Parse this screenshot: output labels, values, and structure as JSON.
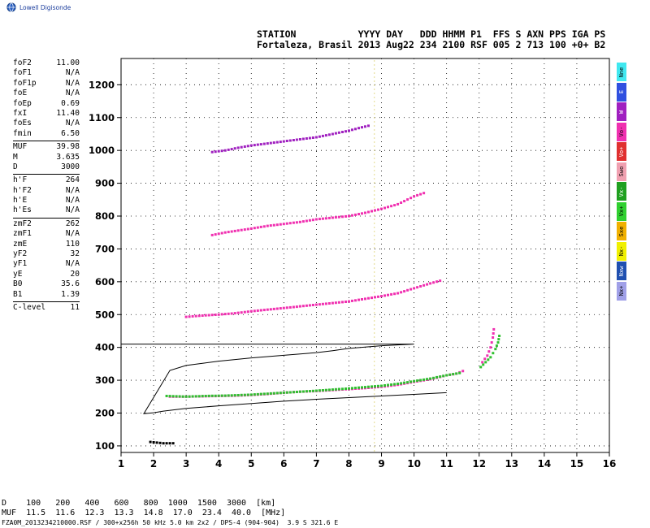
{
  "brand": {
    "name": "Lowell Digisonde",
    "icon": "globe-icon"
  },
  "header": {
    "line1": "STATION           YYYY DAY   DDD HHMM P1  FFS S AXN PPS IGA PS",
    "line2": "Fortaleza, Brasil 2013 Aug22 234 2100 RSF 005 2 713 100 +0+ B2"
  },
  "parameters": [
    {
      "name": "foF2",
      "value": "11.00"
    },
    {
      "name": "foF1",
      "value": "N/A"
    },
    {
      "name": "foF1p",
      "value": "N/A"
    },
    {
      "name": "foE",
      "value": "N/A"
    },
    {
      "name": "foEp",
      "value": "0.69"
    },
    {
      "name": "fxI",
      "value": "11.40"
    },
    {
      "name": "foEs",
      "value": "N/A"
    },
    {
      "name": "fmin",
      "value": "6.50"
    },
    {
      "sep": true
    },
    {
      "name": "MUF",
      "value": "39.98"
    },
    {
      "name": "M",
      "value": "3.635"
    },
    {
      "name": "D",
      "value": "3000"
    },
    {
      "sep": true
    },
    {
      "name": "h'F",
      "value": "264"
    },
    {
      "name": "h'F2",
      "value": "N/A"
    },
    {
      "name": "h'E",
      "value": "N/A"
    },
    {
      "name": "h'Es",
      "value": "N/A"
    },
    {
      "sep": true
    },
    {
      "name": "zmF2",
      "value": "262"
    },
    {
      "name": "zmF1",
      "value": "N/A"
    },
    {
      "name": "zmE",
      "value": "110"
    },
    {
      "name": "yF2",
      "value": "32"
    },
    {
      "name": "yF1",
      "value": "N/A"
    },
    {
      "name": "yE",
      "value": "20"
    },
    {
      "name": "B0",
      "value": "35.6"
    },
    {
      "name": "B1",
      "value": "1.39"
    },
    {
      "sep": true
    },
    {
      "name": "C-level",
      "value": "11"
    }
  ],
  "mode_key": [
    {
      "label": "Nne",
      "color": "#40e8f0"
    },
    {
      "label": "E",
      "color": "#3050e0"
    },
    {
      "label": "W",
      "color": "#a020c0"
    },
    {
      "label": "Vo-",
      "color": "#f030b0"
    },
    {
      "label": "Vo+",
      "color": "#e03030"
    },
    {
      "label": "Swo",
      "color": "#f0a0b0"
    },
    {
      "label": "Vx-",
      "color": "#20a020"
    },
    {
      "label": "Vx+",
      "color": "#30d030"
    },
    {
      "label": "Sxe",
      "color": "#f0b000"
    },
    {
      "label": "Nx-",
      "color": "#f0f000"
    },
    {
      "label": "Nxw",
      "color": "#2050b0"
    },
    {
      "label": "Nx+",
      "color": "#a0a0e8"
    }
  ],
  "footer": {
    "d_row": "D    100   200   400   600   800  1000  1500  3000  [km]",
    "muf_row": "MUF  11.5  11.6  12.3  13.3  14.8  17.0  23.4  40.0  [MHz]",
    "file_row": "FZA0M_2013234210000.RSF / 300+x256h 50 kHz 5.0 km 2x2 / DPS-4 (904-904)  3.9 S 321.6 E"
  },
  "chart_data": {
    "type": "scatter",
    "xlim": [
      1,
      16
    ],
    "ylim": [
      80,
      1280
    ],
    "x_ticks": [
      1,
      2,
      3,
      4,
      5,
      6,
      7,
      8,
      9,
      10,
      11,
      12,
      13,
      14,
      15,
      16
    ],
    "y_ticks": [
      100,
      200,
      300,
      400,
      500,
      600,
      700,
      800,
      900,
      1000,
      1100,
      1200
    ],
    "grid": "dotted",
    "traces": [
      {
        "name": "F-trace O",
        "color": "#f030b0",
        "points": [
          [
            2.5,
            250
          ],
          [
            3,
            250
          ],
          [
            3.5,
            251
          ],
          [
            4,
            252
          ],
          [
            4.5,
            253
          ],
          [
            5,
            255
          ],
          [
            5.5,
            258
          ],
          [
            6,
            262
          ],
          [
            6.5,
            265
          ],
          [
            7,
            267
          ],
          [
            7.5,
            270
          ],
          [
            8,
            273
          ],
          [
            8.5,
            276
          ],
          [
            9,
            280
          ],
          [
            9.5,
            286
          ],
          [
            10,
            295
          ],
          [
            10.5,
            303
          ],
          [
            10.8,
            310
          ],
          [
            11,
            315
          ],
          [
            11.3,
            320
          ],
          [
            11.5,
            328
          ]
        ]
      },
      {
        "name": "F-trace X",
        "color": "#30c030",
        "points": [
          [
            2.4,
            252
          ],
          [
            3,
            250
          ],
          [
            3.6,
            252
          ],
          [
            4.2,
            253
          ],
          [
            5,
            256
          ],
          [
            6,
            262
          ],
          [
            7,
            268
          ],
          [
            8,
            275
          ],
          [
            9,
            283
          ],
          [
            9.5,
            289
          ],
          [
            10,
            297
          ],
          [
            10.5,
            305
          ],
          [
            11,
            315
          ],
          [
            11.4,
            322
          ]
        ]
      },
      {
        "name": "F2 cusp",
        "color": "#30c030",
        "points": [
          [
            12.05,
            340
          ],
          [
            12.2,
            355
          ],
          [
            12.35,
            370
          ],
          [
            12.5,
            395
          ],
          [
            12.58,
            415
          ],
          [
            12.62,
            435
          ]
        ]
      },
      {
        "name": "F2 cusp O",
        "color": "#f030b0",
        "points": [
          [
            12.1,
            355
          ],
          [
            12.25,
            375
          ],
          [
            12.35,
            400
          ],
          [
            12.42,
            430
          ],
          [
            12.45,
            455
          ]
        ]
      },
      {
        "name": "2F echo",
        "color": "#f030b0",
        "points": [
          [
            3,
            493
          ],
          [
            3.5,
            497
          ],
          [
            4,
            500
          ],
          [
            4.5,
            504
          ],
          [
            5,
            510
          ],
          [
            5.5,
            515
          ],
          [
            6,
            520
          ],
          [
            6.5,
            525
          ],
          [
            7,
            530
          ],
          [
            7.5,
            535
          ],
          [
            8,
            540
          ],
          [
            8.5,
            548
          ],
          [
            9,
            556
          ],
          [
            9.5,
            565
          ],
          [
            10,
            580
          ],
          [
            10.5,
            595
          ],
          [
            10.8,
            603
          ]
        ]
      },
      {
        "name": "3F echo",
        "color": "#f030b0",
        "points": [
          [
            3.8,
            742
          ],
          [
            4.2,
            750
          ],
          [
            4.6,
            756
          ],
          [
            5,
            762
          ],
          [
            5.5,
            770
          ],
          [
            6,
            776
          ],
          [
            6.5,
            782
          ],
          [
            7,
            790
          ],
          [
            7.5,
            795
          ],
          [
            8,
            800
          ],
          [
            8.5,
            810
          ],
          [
            9,
            822
          ],
          [
            9.5,
            836
          ],
          [
            10,
            860
          ],
          [
            10.3,
            870
          ]
        ]
      },
      {
        "name": "4F echo",
        "color": "#a020c0",
        "points": [
          [
            3.8,
            995
          ],
          [
            4.2,
            1000
          ],
          [
            4.6,
            1008
          ],
          [
            5,
            1015
          ],
          [
            5.4,
            1020
          ],
          [
            5.8,
            1025
          ],
          [
            6.2,
            1030
          ],
          [
            6.6,
            1035
          ],
          [
            7,
            1040
          ],
          [
            8,
            1060
          ],
          [
            8.3,
            1068
          ],
          [
            8.6,
            1075
          ]
        ]
      },
      {
        "name": "E echo",
        "color": "#000000",
        "points": [
          [
            1.9,
            112
          ],
          [
            2.1,
            110
          ],
          [
            2.3,
            108
          ],
          [
            2.6,
            108
          ]
        ]
      }
    ],
    "profile": [
      [
        11,
        262
      ],
      [
        10,
        257
      ],
      [
        9,
        252
      ],
      [
        8,
        247
      ],
      [
        7,
        242
      ],
      [
        6,
        236
      ],
      [
        5,
        229
      ],
      [
        4,
        222
      ],
      [
        3,
        214
      ],
      [
        2.3,
        206
      ],
      [
        2.0,
        201
      ],
      [
        1.7,
        198
      ],
      [
        2.5,
        330
      ],
      [
        3,
        345
      ],
      [
        4,
        358
      ],
      [
        5,
        368
      ],
      [
        6,
        376
      ],
      [
        7,
        384
      ],
      [
        7.5,
        390
      ],
      [
        8,
        397
      ],
      [
        9,
        405
      ],
      [
        10,
        410
      ],
      [
        1,
        410
      ]
    ],
    "vertical_marker_x": 8.78
  }
}
